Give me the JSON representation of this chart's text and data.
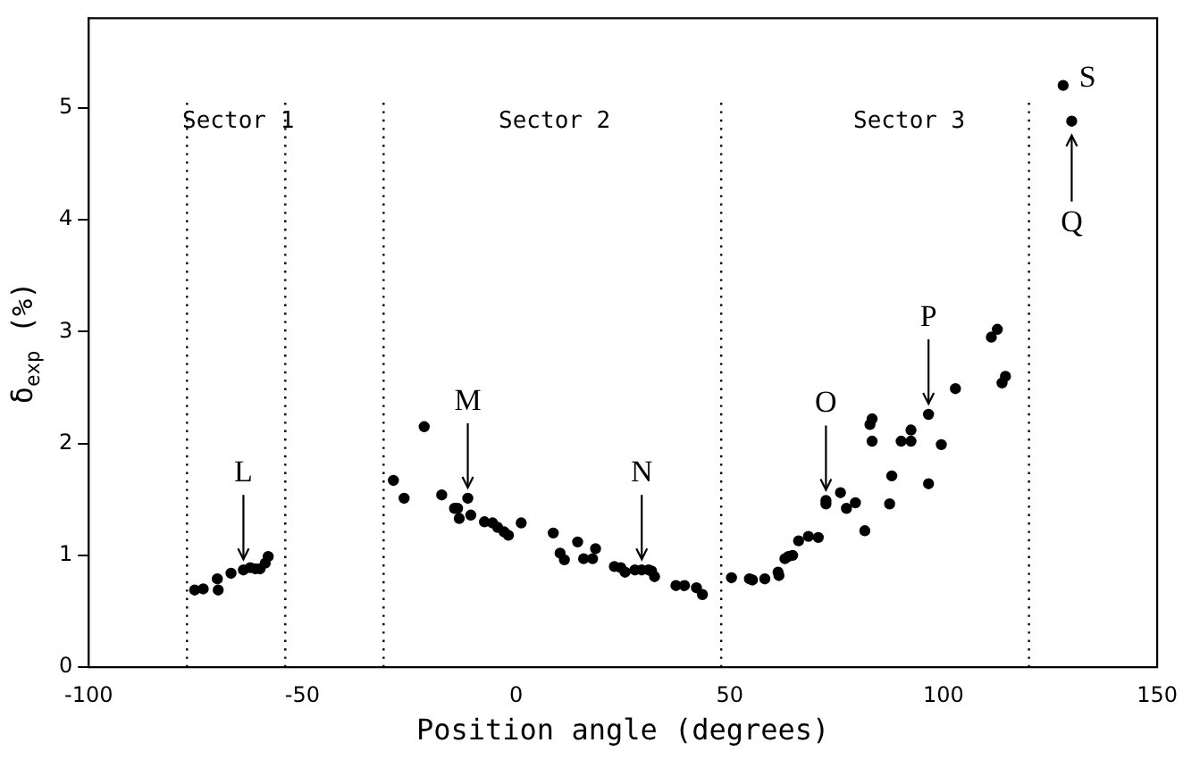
{
  "chart_data": {
    "type": "scatter",
    "xlabel": "Position angle (degrees)",
    "ylabel": "δ$_{exp}$ (%)",
    "x": [
      -75.2,
      -73.2,
      -69.9,
      -69.7,
      -66.7,
      -63.8,
      -62.2,
      -61.0,
      -59.9,
      -58.7,
      -58.0,
      -28.7,
      -26.2,
      -21.5,
      -17.4,
      -14.4,
      -13.7,
      -13.3,
      -11.3,
      -10.6,
      -7.4,
      -5.5,
      -4.3,
      -2.8,
      -1.8,
      1.2,
      8.7,
      10.3,
      11.3,
      14.4,
      15.8,
      17.9,
      18.6,
      23.0,
      24.5,
      25.5,
      27.8,
      29.4,
      31.0,
      31.7,
      32.4,
      37.4,
      39.4,
      42.2,
      43.6,
      50.4,
      54.6,
      55.3,
      58.2,
      61.3,
      61.5,
      62.9,
      63.7,
      64.7,
      66.1,
      68.4,
      70.7,
      72.5,
      72.5,
      75.9,
      77.3,
      79.4,
      81.6,
      82.8,
      83.3,
      83.3,
      87.4,
      87.9,
      90.1,
      92.4,
      92.4,
      96.5,
      96.5,
      99.5,
      102.8,
      111.2,
      112.6,
      113.7,
      114.5,
      128.0,
      130.0
    ],
    "values": [
      0.69,
      0.7,
      0.79,
      0.69,
      0.84,
      0.87,
      0.89,
      0.88,
      0.88,
      0.93,
      0.99,
      1.67,
      1.51,
      2.15,
      1.54,
      1.42,
      1.42,
      1.33,
      1.51,
      1.36,
      1.3,
      1.29,
      1.25,
      1.21,
      1.18,
      1.29,
      1.2,
      1.02,
      0.96,
      1.12,
      0.97,
      0.97,
      1.06,
      0.9,
      0.89,
      0.85,
      0.87,
      0.87,
      0.87,
      0.86,
      0.81,
      0.73,
      0.73,
      0.71,
      0.65,
      0.8,
      0.79,
      0.78,
      0.79,
      0.85,
      0.82,
      0.97,
      0.99,
      1.0,
      1.13,
      1.17,
      1.16,
      1.49,
      1.46,
      1.56,
      1.42,
      1.47,
      1.22,
      2.17,
      2.22,
      2.02,
      1.46,
      1.71,
      2.02,
      2.12,
      2.02,
      2.26,
      1.64,
      1.99,
      2.49,
      2.95,
      3.02,
      2.54,
      2.6,
      5.2,
      4.88
    ],
    "color": "#000000",
    "marker": "circle",
    "grid": false,
    "xlim": [
      -100,
      150
    ],
    "xticks": [
      -100,
      -50,
      0,
      50,
      100,
      150
    ],
    "ylim": [
      0,
      5.8
    ],
    "yticks": [
      0,
      1,
      2,
      3,
      4,
      5
    ],
    "ref_lines": [
      {
        "axis": "x",
        "value": -77,
        "line_style": "dotted"
      },
      {
        "axis": "x",
        "value": -54,
        "line_style": "dotted"
      },
      {
        "axis": "x",
        "value": -31,
        "line_style": "dotted"
      },
      {
        "axis": "x",
        "value": 48,
        "line_style": "dotted"
      },
      {
        "axis": "x",
        "value": 120,
        "line_style": "dotted"
      }
    ],
    "annotations": [
      "Sector 1",
      "Sector 2",
      "Sector 3",
      {
        "text": "L",
        "x": -63.8,
        "y": 0.87
      },
      {
        "text": "M",
        "x": -11.3,
        "y": 1.51
      },
      {
        "text": "N",
        "x": 29.4,
        "y": 0.87
      },
      {
        "text": "O",
        "x": 72.5,
        "y": 1.49
      },
      {
        "text": "P",
        "x": 96.5,
        "y": 2.26
      },
      {
        "text": "Q",
        "x": 130.0,
        "y": 4.88
      },
      {
        "text": "S",
        "x": 128.0,
        "y": 5.2
      }
    ]
  }
}
